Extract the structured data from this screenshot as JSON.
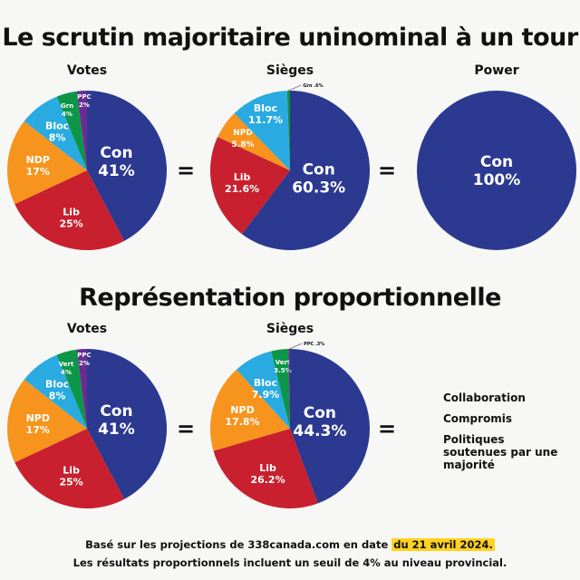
{
  "title_fptp": "Le scrutin majoritaire uninominal à un tour",
  "title_pr": "Représentation proportionnelle",
  "colors": {
    "Con": "#2b3990",
    "Lib": "#c8202f",
    "NDP": "#f7941d",
    "Bloc": "#29abe2",
    "Grn": "#0d9648",
    "PPC": "#6a2c91"
  },
  "equals": "=",
  "side_notes": [
    "Collaboration",
    "Compromis",
    "Politiques soutenues par une majorité"
  ],
  "footer": {
    "line1_prefix": "Basé sur les projections de 338canada.com en date ",
    "line1_highlight": "du 21 avril 2024.",
    "line2": "Les résultats proportionnels incluent un seuil de 4% au niveau provincial."
  },
  "chart_data": [
    {
      "type": "pie",
      "title": "Votes",
      "section": "fptp",
      "slices": [
        {
          "label": "Con",
          "value": 41,
          "text": "41%",
          "color": "Con"
        },
        {
          "label": "Lib",
          "value": 25,
          "text": "25%",
          "color": "Lib"
        },
        {
          "label": "NDP",
          "value": 17,
          "text": "17%",
          "color": "NDP"
        },
        {
          "label": "Bloc",
          "value": 8,
          "text": "8%",
          "color": "Bloc"
        },
        {
          "label": "Grn",
          "value": 4,
          "text": "4%",
          "color": "Grn"
        },
        {
          "label": "PPC",
          "value": 2,
          "text": "2%",
          "color": "PPC"
        }
      ]
    },
    {
      "type": "pie",
      "title": "Sièges",
      "section": "fptp",
      "slices": [
        {
          "label": "Con",
          "value": 60.3,
          "text": "60.3%",
          "color": "Con"
        },
        {
          "label": "Lib",
          "value": 21.6,
          "text": "21.6%",
          "color": "Lib"
        },
        {
          "label": "NPD",
          "value": 5.8,
          "text": "5.8%",
          "color": "NDP"
        },
        {
          "label": "Bloc",
          "value": 11.7,
          "text": "11.7%",
          "color": "Bloc"
        },
        {
          "label": "Grn",
          "value": 0.6,
          "text": ".6%",
          "color": "Grn"
        }
      ]
    },
    {
      "type": "pie",
      "title": "Power",
      "section": "fptp",
      "slices": [
        {
          "label": "Con",
          "value": 100,
          "text": "100%",
          "color": "Con"
        }
      ]
    },
    {
      "type": "pie",
      "title": "Votes",
      "section": "pr",
      "slices": [
        {
          "label": "Con",
          "value": 41,
          "text": "41%",
          "color": "Con"
        },
        {
          "label": "Lib",
          "value": 25,
          "text": "25%",
          "color": "Lib"
        },
        {
          "label": "NPD",
          "value": 17,
          "text": "17%",
          "color": "NDP"
        },
        {
          "label": "Bloc",
          "value": 8,
          "text": "8%",
          "color": "Bloc"
        },
        {
          "label": "Vert",
          "value": 4,
          "text": "4%",
          "color": "Grn"
        },
        {
          "label": "PPC",
          "value": 2,
          "text": "2%",
          "color": "PPC"
        }
      ]
    },
    {
      "type": "pie",
      "title": "Sièges",
      "section": "pr",
      "slices": [
        {
          "label": "Con",
          "value": 44.3,
          "text": "44.3%",
          "color": "Con"
        },
        {
          "label": "Lib",
          "value": 26.2,
          "text": "26.2%",
          "color": "Lib"
        },
        {
          "label": "NPD",
          "value": 17.8,
          "text": "17.8%",
          "color": "NDP"
        },
        {
          "label": "Bloc",
          "value": 7.9,
          "text": "7.9%",
          "color": "Bloc"
        },
        {
          "label": "Vert",
          "value": 3.5,
          "text": "3.5%",
          "color": "Grn"
        },
        {
          "label": "PPC",
          "value": 0.3,
          "text": ".3%",
          "color": "PPC"
        }
      ]
    }
  ]
}
